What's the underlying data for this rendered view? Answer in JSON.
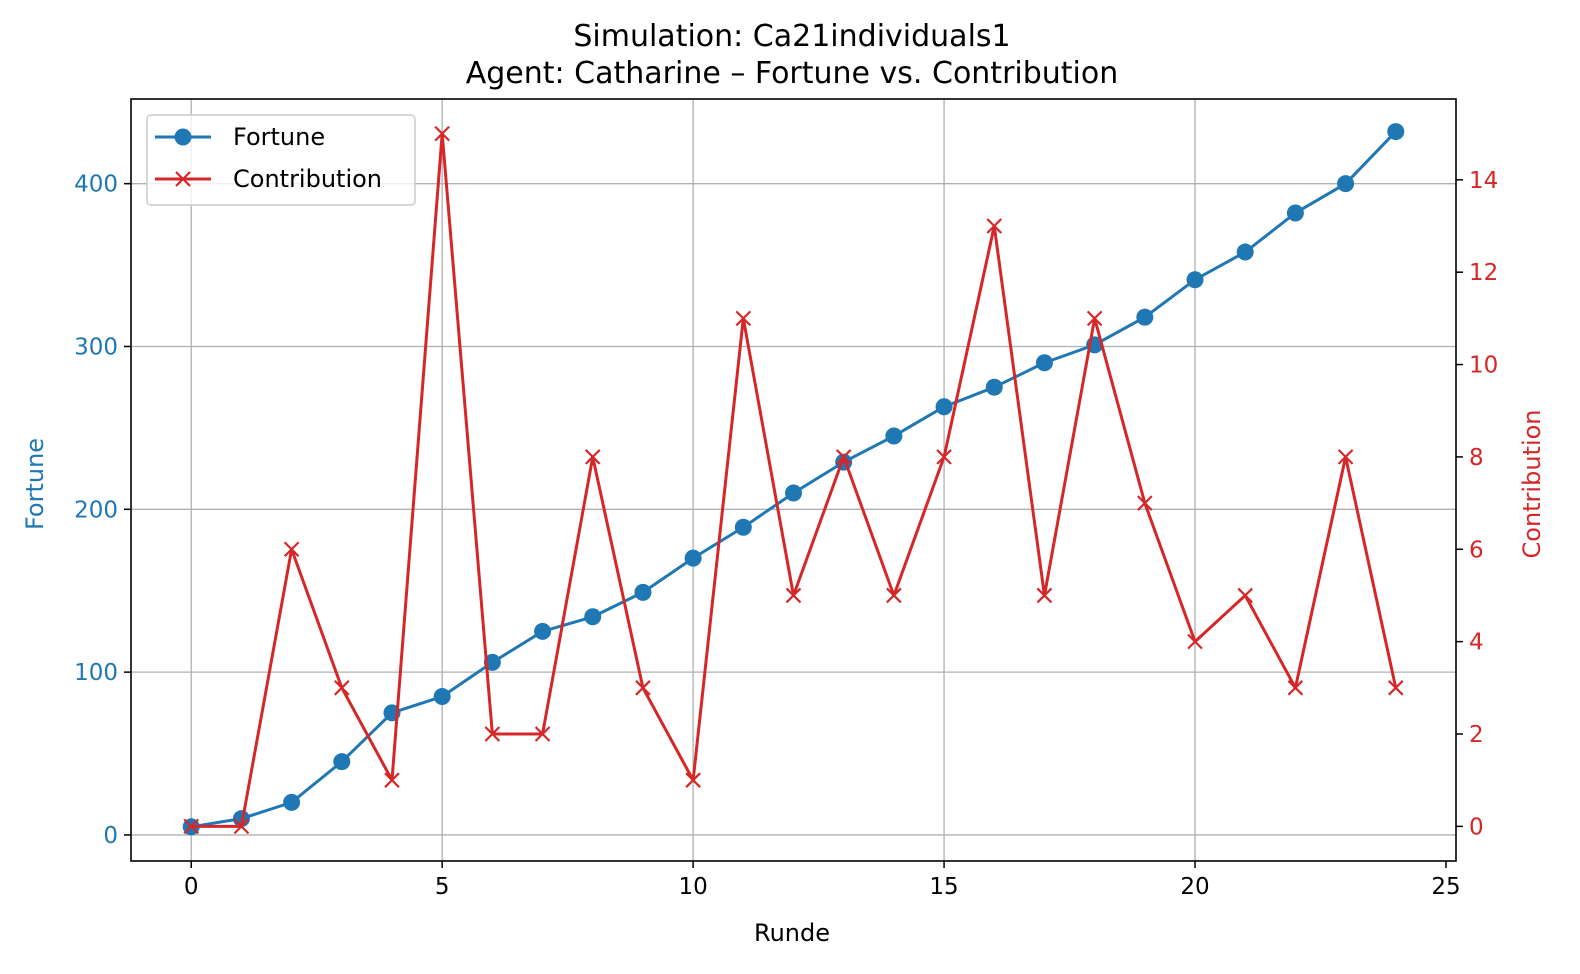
{
  "title_line1": "Simulation: Ca21individuals1",
  "title_line2": "Agent: Catharine – Fortune vs. Contribution",
  "colors": {
    "fortune": "#1f77b4",
    "contribution": "#d62728",
    "grid": "#b0b0b0",
    "axis": "#000000"
  },
  "chart_data": {
    "type": "line",
    "title": "Simulation: Ca21individuals1 / Agent: Catharine – Fortune vs. Contribution",
    "xlabel": "Runde",
    "ylabel_left": "Fortune",
    "ylabel_right": "Contribution",
    "x": [
      0,
      1,
      2,
      3,
      4,
      5,
      6,
      7,
      8,
      9,
      10,
      11,
      12,
      13,
      14,
      15,
      16,
      17,
      18,
      19,
      20,
      21,
      22,
      23,
      24
    ],
    "xlim": [
      -1.2,
      25.2
    ],
    "ylim_left": [
      -16,
      452
    ],
    "ylim_right": [
      -0.75,
      15.75
    ],
    "xticks": [
      0,
      5,
      10,
      15,
      20,
      25
    ],
    "yticks_left": [
      0,
      100,
      200,
      300,
      400
    ],
    "yticks_right": [
      0,
      2,
      4,
      6,
      8,
      10,
      12,
      14
    ],
    "grid": true,
    "legend_position": "top-left",
    "series": [
      {
        "name": "Fortune",
        "axis": "left",
        "marker": "circle",
        "values": [
          5,
          10,
          20,
          45,
          75,
          85,
          106,
          125,
          134,
          149,
          170,
          189,
          210,
          229,
          245,
          263,
          275,
          290,
          301,
          318,
          341,
          358,
          382,
          400,
          432
        ]
      },
      {
        "name": "Contribution",
        "axis": "right",
        "marker": "x",
        "values": [
          0,
          0,
          6,
          3,
          1,
          15,
          2,
          2,
          8,
          3,
          1,
          11,
          5,
          8,
          5,
          8,
          13,
          5,
          11,
          7,
          4,
          5,
          3,
          8,
          3
        ]
      }
    ]
  }
}
